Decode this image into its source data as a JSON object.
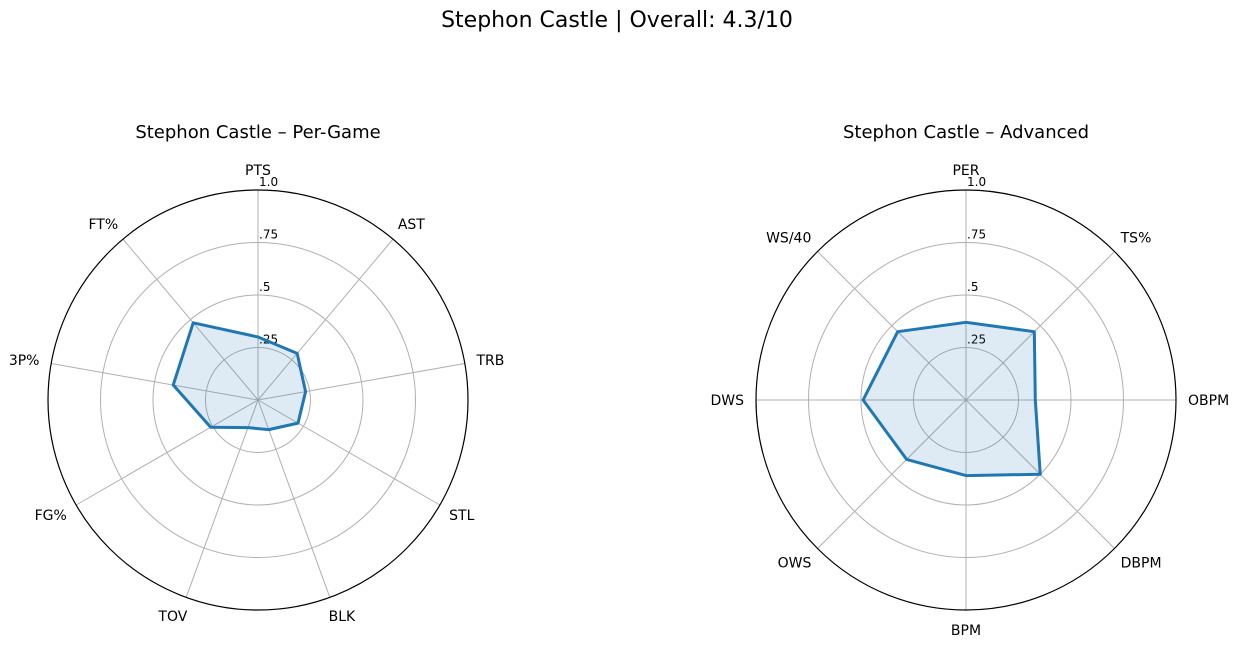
{
  "figure": {
    "title": "Stephon Castle | Overall: 4.3/10"
  },
  "chart_data": [
    {
      "type": "radar",
      "title": "Stephon Castle – Per-Game",
      "categories": [
        "PTS",
        "AST",
        "TRB",
        "STL",
        "BLK",
        "TOV",
        "FG%",
        "3P%",
        "FT%"
      ],
      "values": [
        0.3,
        0.29,
        0.23,
        0.22,
        0.15,
        0.14,
        0.26,
        0.41,
        0.48
      ],
      "rticks": [
        0.25,
        0.5,
        0.75,
        1.0
      ],
      "rtick_labels": [
        ".25",
        ".5",
        ".75",
        "1.0"
      ],
      "rlim": [
        0,
        1
      ],
      "color": "#1f77b4"
    },
    {
      "type": "radar",
      "title": "Stephon Castle – Advanced",
      "categories": [
        "PER",
        "TS%",
        "OBPM",
        "DBPM",
        "BPM",
        "OWS",
        "DWS",
        "WS/40"
      ],
      "values": [
        0.37,
        0.46,
        0.33,
        0.5,
        0.36,
        0.4,
        0.49,
        0.46
      ],
      "rticks": [
        0.25,
        0.5,
        0.75,
        1.0
      ],
      "rtick_labels": [
        ".25",
        ".5",
        ".75",
        "1.0"
      ],
      "rlim": [
        0,
        1
      ],
      "color": "#1f77b4"
    }
  ]
}
